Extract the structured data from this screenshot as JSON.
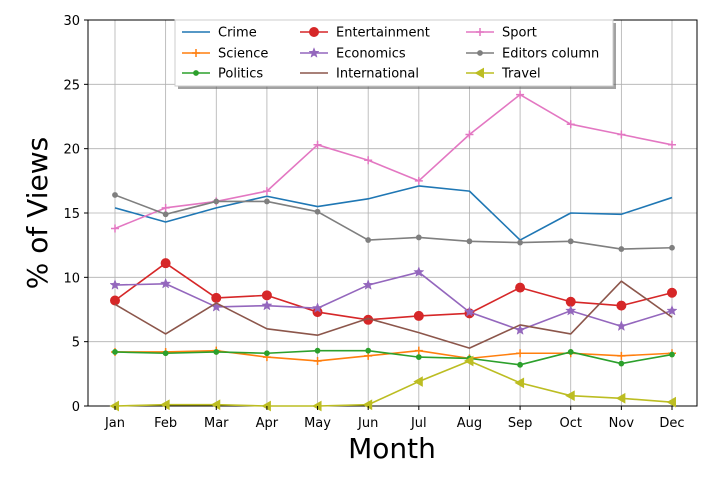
{
  "chart_data": {
    "type": "line",
    "title": "",
    "xlabel": "Month",
    "ylabel": "% of Views",
    "categories": [
      "Jan",
      "Feb",
      "Mar",
      "Apr",
      "May",
      "Jun",
      "Jul",
      "Aug",
      "Sep",
      "Oct",
      "Nov",
      "Dec"
    ],
    "ylim": [
      0,
      30
    ],
    "yticks": [
      "0",
      "5",
      "10",
      "15",
      "20",
      "25",
      "30"
    ],
    "grid": true,
    "legend_position": "top-center",
    "series": [
      {
        "name": "Crime",
        "color": "#1f77b4",
        "marker": "none",
        "values": [
          15.4,
          14.3,
          15.4,
          16.3,
          15.5,
          16.1,
          17.1,
          16.7,
          12.9,
          15.0,
          14.9,
          16.2
        ]
      },
      {
        "name": "Science",
        "color": "#ff7f0e",
        "marker": "plus",
        "values": [
          4.2,
          4.2,
          4.3,
          3.8,
          3.5,
          3.9,
          4.3,
          3.7,
          4.1,
          4.1,
          3.9,
          4.1
        ]
      },
      {
        "name": "Politics",
        "color": "#2ca02c",
        "marker": "dot",
        "values": [
          4.2,
          4.1,
          4.2,
          4.1,
          4.3,
          4.3,
          3.8,
          3.7,
          3.2,
          4.2,
          3.3,
          4.0
        ]
      },
      {
        "name": "Entertainment",
        "color": "#d62728",
        "marker": "circle",
        "values": [
          8.2,
          11.1,
          8.4,
          8.6,
          7.3,
          6.7,
          7.0,
          7.2,
          9.2,
          8.1,
          7.8,
          8.8
        ]
      },
      {
        "name": "Economics",
        "color": "#9467bd",
        "marker": "star",
        "values": [
          9.4,
          9.5,
          7.7,
          7.8,
          7.6,
          9.4,
          10.4,
          7.3,
          5.9,
          7.4,
          6.2,
          7.4
        ]
      },
      {
        "name": "International",
        "color": "#8c564b",
        "marker": "none",
        "values": [
          7.9,
          5.6,
          8.0,
          6.0,
          5.5,
          6.8,
          5.7,
          4.5,
          6.3,
          5.6,
          9.7,
          6.9
        ]
      },
      {
        "name": "Sport",
        "color": "#e377c2",
        "marker": "plus",
        "values": [
          13.8,
          15.4,
          15.9,
          16.7,
          20.3,
          19.1,
          17.5,
          21.1,
          24.2,
          21.9,
          21.1,
          20.3
        ]
      },
      {
        "name": "Editors column",
        "color": "#7f7f7f",
        "marker": "dot",
        "values": [
          16.4,
          14.9,
          15.9,
          15.9,
          15.1,
          12.9,
          13.1,
          12.8,
          12.7,
          12.8,
          12.2,
          12.3
        ]
      },
      {
        "name": "Travel",
        "color": "#bcbd22",
        "marker": "triangle-left",
        "values": [
          0.0,
          0.1,
          0.1,
          0.0,
          0.0,
          0.1,
          1.9,
          3.5,
          1.8,
          0.8,
          0.6,
          0.3
        ]
      }
    ]
  }
}
